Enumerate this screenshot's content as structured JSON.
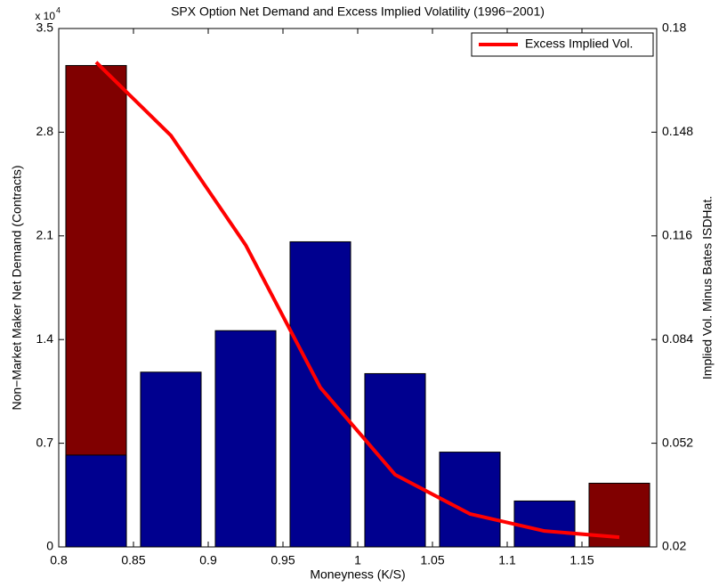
{
  "chart_data": {
    "type": "bar",
    "title": "SPX Option Net Demand and Excess Implied Volatility (1996−2001)",
    "xlabel": "Moneyness (K/S)",
    "ylabel": "Non−Market Maker Net Demand (Contracts)",
    "y2label": "Implied Vol. Minus Bates ISDHat.",
    "yscale_label": {
      "base": "x 10",
      "exponent": "4"
    },
    "x": [
      0.825,
      0.875,
      0.925,
      0.975,
      1.025,
      1.075,
      1.125,
      1.175
    ],
    "xlim": [
      0.8,
      1.2
    ],
    "xticks": [
      0.8,
      0.85,
      0.9,
      0.95,
      1,
      1.05,
      1.1,
      1.15
    ],
    "ylim": [
      0,
      3.5
    ],
    "yticks": [
      0,
      0.7,
      1.4,
      2.1,
      2.8,
      3.5
    ],
    "y2lim": [
      0.02,
      0.18
    ],
    "y2ticks": [
      0.02,
      0.052,
      0.084,
      0.116,
      0.148,
      0.18
    ],
    "legend": "upper right",
    "series": [
      {
        "type": "bar",
        "color": "#800000",
        "values": [
          3.25,
          null,
          null,
          null,
          null,
          null,
          null,
          0.43
        ]
      },
      {
        "type": "bar",
        "color": "#00008f",
        "values": [
          0.62,
          1.18,
          1.46,
          2.06,
          1.17,
          0.64,
          0.31,
          null
        ]
      },
      {
        "type": "line",
        "name": "Excess Implied Vol.",
        "color": "#ff0000",
        "axis": "y2",
        "values": [
          0.1696,
          0.147,
          0.1132,
          0.0692,
          0.0423,
          0.0302,
          0.0249,
          0.023
        ]
      }
    ]
  }
}
